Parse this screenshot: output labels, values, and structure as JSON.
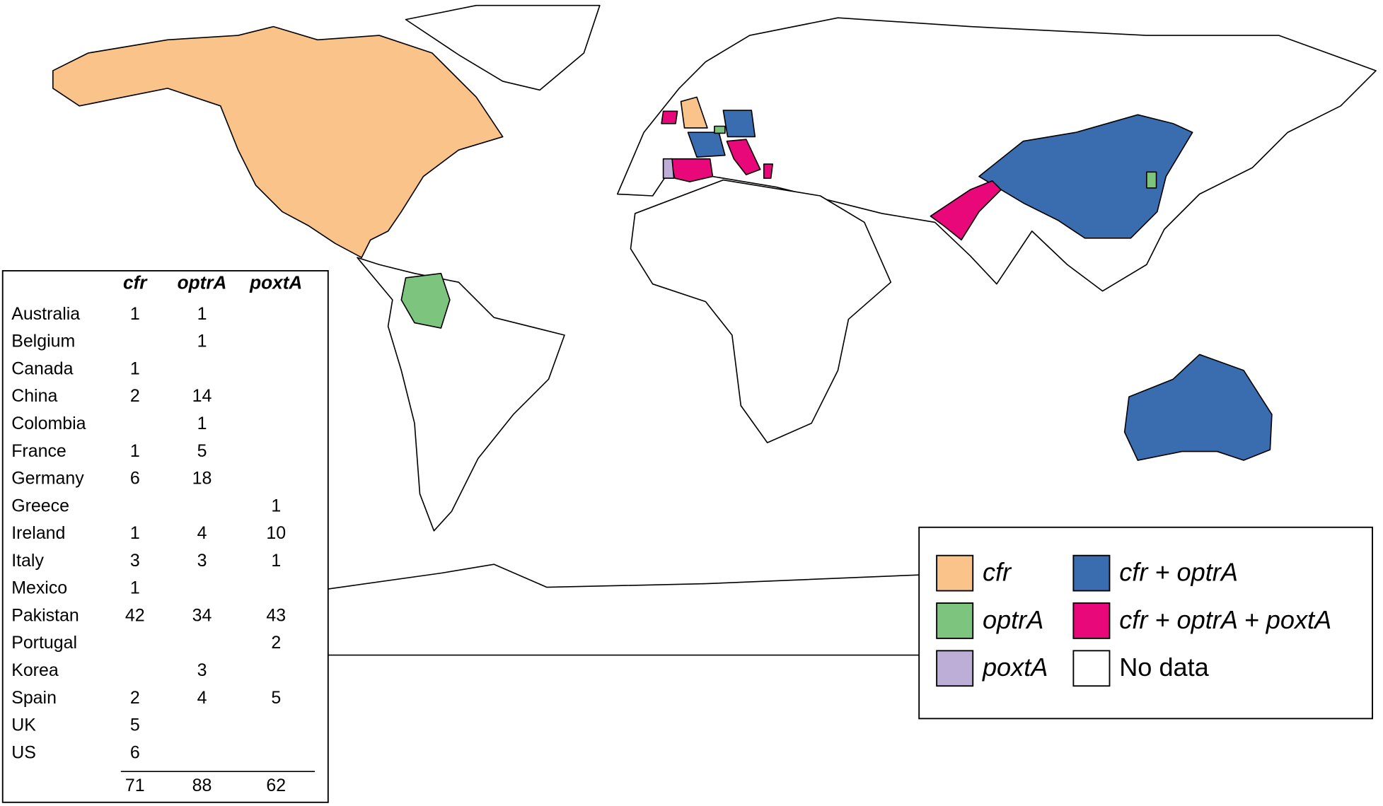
{
  "table": {
    "columns": [
      "cfr",
      "optrA",
      "poxtA"
    ],
    "rows": [
      [
        "Australia",
        1,
        1,
        null
      ],
      [
        "Belgium",
        null,
        1,
        null
      ],
      [
        "Canada",
        1,
        null,
        null
      ],
      [
        "China",
        2,
        14,
        null
      ],
      [
        "Colombia",
        null,
        1,
        null
      ],
      [
        "France",
        1,
        5,
        null
      ],
      [
        "Germany",
        6,
        18,
        null
      ],
      [
        "Greece",
        null,
        null,
        1
      ],
      [
        "Ireland",
        1,
        4,
        10
      ],
      [
        "Italy",
        3,
        3,
        1
      ],
      [
        "Mexico",
        1,
        null,
        null
      ],
      [
        "Pakistan",
        42,
        34,
        43
      ],
      [
        "Portugal",
        null,
        null,
        2
      ],
      [
        "Korea",
        null,
        3,
        null
      ],
      [
        "Spain",
        2,
        4,
        5
      ],
      [
        "UK",
        5,
        null,
        null
      ],
      [
        "US",
        6,
        null,
        null
      ]
    ],
    "totals": [
      71,
      88,
      62
    ]
  },
  "legend": {
    "items": [
      {
        "label": "cfr",
        "color": "#f9c38a"
      },
      {
        "label": "optrA",
        "color": "#7dc57f"
      },
      {
        "label": "poxtA",
        "color": "#bcaed6"
      },
      {
        "label": "cfr + optrA",
        "color": "#3a6cb0"
      },
      {
        "label": "cfr + optrA + poxtA",
        "color": "#e8087a"
      },
      {
        "label": "No data",
        "color": "#ffffff"
      }
    ]
  }
}
